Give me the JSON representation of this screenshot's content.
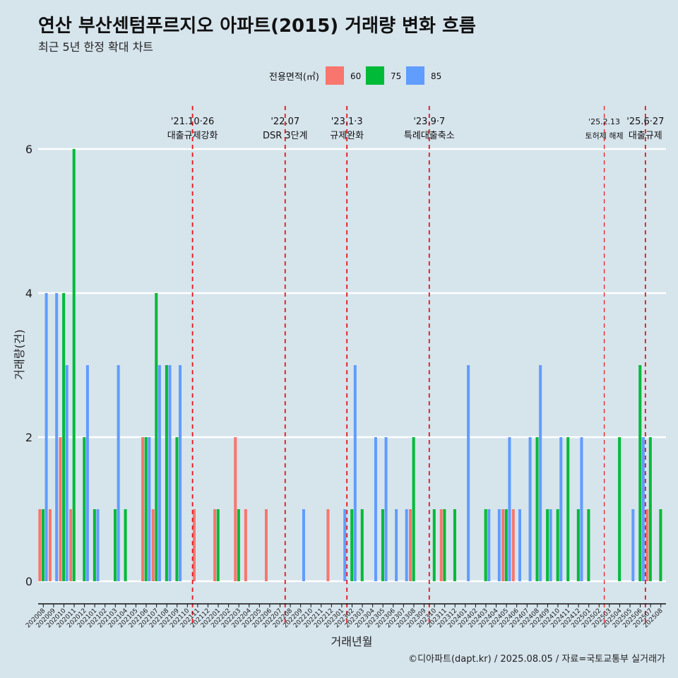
{
  "header": {
    "title": "연산 부산센텀푸르지오 아파트(2015) 거래량 변화 흐름",
    "subtitle": "최근 5년 한정 확대 차트"
  },
  "caption": "©디아파트(dapt.kr) / 2025.08.05 / 자료=국토교통부 실거래가",
  "chart_data": {
    "type": "bar",
    "stacked": false,
    "xlabel": "거래년월",
    "ylabel": "거래량(건)",
    "ylim": [
      -0.3,
      6.7
    ],
    "yticks": [
      0,
      2,
      4,
      6
    ],
    "grid": "horizontal",
    "legend": {
      "title": "전용면적(㎡)",
      "position": "top"
    },
    "categories": [
      "202008",
      "202009",
      "202010",
      "202011",
      "202012",
      "202101",
      "202102",
      "202103",
      "202104",
      "202105",
      "202106",
      "202107",
      "202108",
      "202109",
      "202110",
      "202111",
      "202112",
      "202201",
      "202202",
      "202203",
      "202204",
      "202205",
      "202206",
      "202207",
      "202208",
      "202209",
      "202210",
      "202211",
      "202212",
      "202301",
      "202302",
      "202303",
      "202304",
      "202305",
      "202306",
      "202307",
      "202308",
      "202309",
      "202310",
      "202311",
      "202312",
      "202401",
      "202402",
      "202403",
      "202404",
      "202405",
      "202406",
      "202407",
      "202408",
      "202409",
      "202410",
      "202411",
      "202412",
      "202501",
      "202502",
      "202503",
      "202504",
      "202505",
      "202506",
      "202507",
      "202508"
    ],
    "series": [
      {
        "name": "60",
        "color": "#f8766d",
        "values": [
          1,
          1,
          2,
          1,
          0,
          0,
          0,
          0,
          0,
          0,
          2,
          1,
          0,
          0,
          0,
          1,
          0,
          1,
          0,
          2,
          1,
          0,
          1,
          0,
          0,
          0,
          0,
          0,
          1,
          0,
          0,
          0,
          0,
          0,
          0,
          0,
          1,
          0,
          0,
          1,
          0,
          0,
          0,
          0,
          0,
          1,
          1,
          0,
          0,
          0,
          0,
          0,
          0,
          0,
          0,
          0,
          0,
          0,
          0,
          1,
          0
        ]
      },
      {
        "name": "75",
        "color": "#00ba38",
        "values": [
          1,
          0,
          4,
          6,
          2,
          1,
          0,
          1,
          1,
          0,
          2,
          4,
          3,
          2,
          0,
          0,
          0,
          1,
          0,
          1,
          0,
          0,
          0,
          0,
          0,
          0,
          0,
          0,
          0,
          0,
          1,
          1,
          0,
          1,
          0,
          0,
          2,
          0,
          1,
          1,
          1,
          0,
          0,
          1,
          0,
          1,
          0,
          0,
          2,
          1,
          1,
          2,
          1,
          1,
          0,
          0,
          2,
          0,
          3,
          2,
          1
        ]
      },
      {
        "name": "85",
        "color": "#619cff",
        "values": [
          4,
          4,
          3,
          0,
          3,
          1,
          0,
          3,
          0,
          0,
          2,
          3,
          3,
          3,
          0,
          0,
          0,
          0,
          0,
          0,
          0,
          0,
          0,
          0,
          0,
          1,
          0,
          0,
          0,
          1,
          3,
          0,
          2,
          2,
          1,
          1,
          0,
          0,
          0,
          0,
          0,
          3,
          0,
          1,
          1,
          2,
          1,
          2,
          3,
          1,
          2,
          0,
          2,
          0,
          0,
          0,
          0,
          1,
          2,
          0,
          0
        ]
      }
    ],
    "annotations": [
      {
        "index": 14.5,
        "date": "'21.10·26",
        "label": "대출규제강화",
        "style": "bold"
      },
      {
        "index": 23.5,
        "date": "'22.07",
        "label": "DSR 3단계",
        "style": "bold"
      },
      {
        "index": 29.5,
        "date": "'23.1·3",
        "label": "규제완화",
        "style": "bold"
      },
      {
        "index": 37.5,
        "date": "'23.9·7",
        "label": "특례대출축소",
        "style": "bold"
      },
      {
        "index": 54.5,
        "date": "'25.2.13",
        "label": "토허제 해제",
        "style": "thin"
      },
      {
        "index": 58.5,
        "date": "'25.6·27",
        "label": "대출규제",
        "style": "bold"
      }
    ]
  }
}
